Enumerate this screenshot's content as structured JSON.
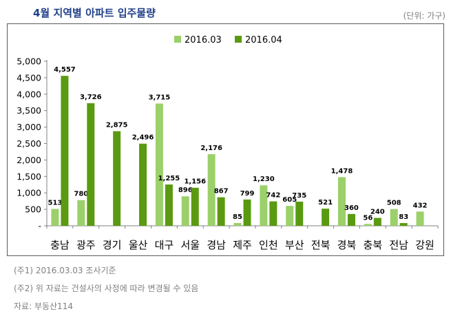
{
  "header": {
    "title": "4월 지역별 아파트 입주물량",
    "unit": "(단위: 가구)"
  },
  "notes": [
    "(주1) 2016.03.03 조사기준",
    "(주2) 위 자료는 건설사의 사정에 따라 변경될 수 있음",
    "자료: 부동산114"
  ],
  "chart_data": {
    "type": "bar",
    "title": "4월 지역별 아파트 입주물량",
    "xlabel": "",
    "ylabel": "",
    "ylim": [
      0,
      5000
    ],
    "yticks": [
      0,
      500,
      1000,
      1500,
      2000,
      2500,
      3000,
      3500,
      4000,
      4500,
      5000
    ],
    "ytick_labels": [
      "-",
      "500",
      "1,000",
      "1,500",
      "2,000",
      "2,500",
      "3,000",
      "3,500",
      "4,000",
      "4,500",
      "5,000"
    ],
    "grid": false,
    "legend_position": "top-center",
    "categories": [
      "충남",
      "광주",
      "경기",
      "울산",
      "대구",
      "서울",
      "경남",
      "제주",
      "인천",
      "부산",
      "전북",
      "경북",
      "충북",
      "전남",
      "강원"
    ],
    "series": [
      {
        "name": "2016.03",
        "color": "#9bd06a",
        "values": [
          513,
          780,
          0,
          0,
          3715,
          896,
          2176,
          85,
          1230,
          605,
          0,
          1478,
          56,
          508,
          432
        ],
        "labels": [
          "513",
          "780",
          "",
          "",
          "3,715",
          "896",
          "2,176",
          "85",
          "1,230",
          "605",
          "",
          "1,478",
          "56",
          "508",
          "432"
        ]
      },
      {
        "name": "2016.04",
        "color": "#5a9a10",
        "values": [
          4557,
          3726,
          2875,
          2496,
          1255,
          1156,
          867,
          799,
          742,
          735,
          521,
          360,
          240,
          83,
          0
        ],
        "labels": [
          "4,557",
          "3,726",
          "2,875",
          "2,496",
          "1,255",
          "1,156",
          "867",
          "799",
          "742",
          "735",
          "521",
          "360",
          "240",
          "83",
          ""
        ]
      }
    ]
  }
}
